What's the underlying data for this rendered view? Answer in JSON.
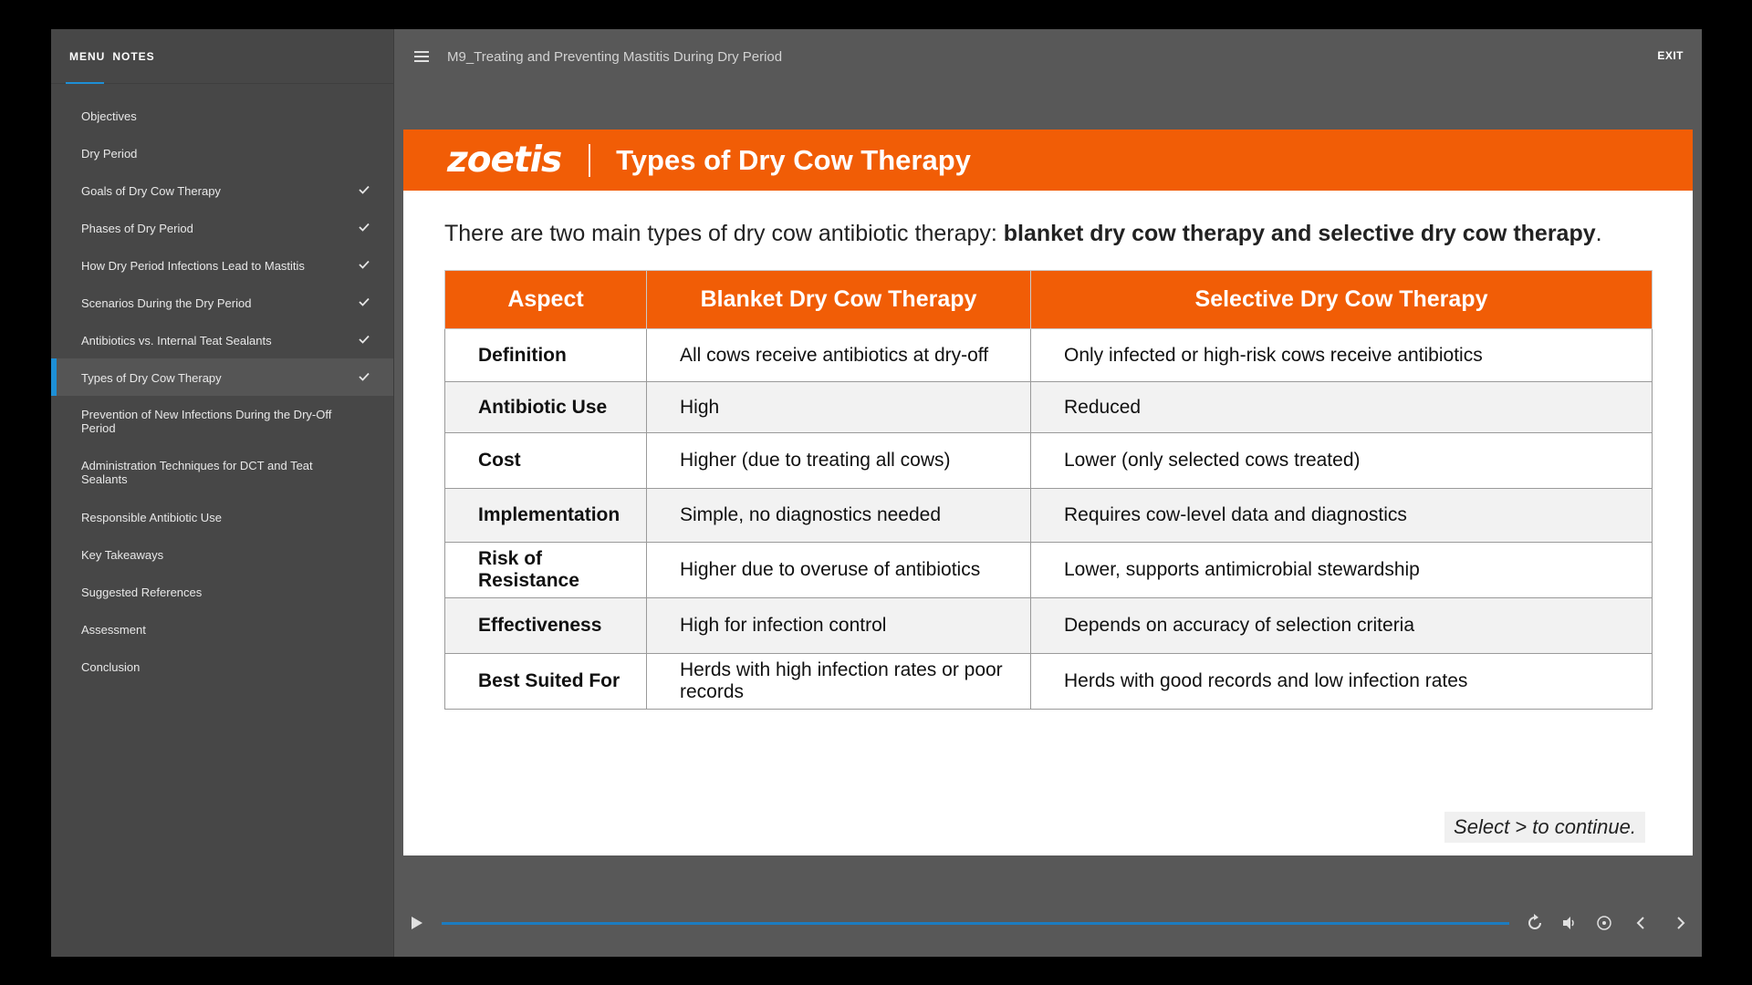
{
  "sidebar": {
    "tabs": [
      "MENU",
      "NOTES"
    ],
    "items": [
      {
        "label": "Objectives",
        "checked": false
      },
      {
        "label": "Dry Period",
        "checked": false
      },
      {
        "label": "Goals of Dry Cow Therapy",
        "checked": true
      },
      {
        "label": "Phases of Dry Period",
        "checked": true
      },
      {
        "label": "How Dry Period Infections Lead to Mastitis",
        "checked": true
      },
      {
        "label": "Scenarios During the Dry Period",
        "checked": true
      },
      {
        "label": "Antibiotics vs. Internal Teat Sealants",
        "checked": true
      },
      {
        "label": "Types of Dry Cow Therapy",
        "checked": true,
        "active": true
      },
      {
        "label": "Prevention of New Infections During the Dry-Off Period",
        "checked": false
      },
      {
        "label": "Administration Techniques for DCT and Teat Sealants",
        "checked": false
      },
      {
        "label": "Responsible Antibiotic Use",
        "checked": false
      },
      {
        "label": "Key Takeaways",
        "checked": false
      },
      {
        "label": "Suggested References",
        "checked": false
      },
      {
        "label": "Assessment",
        "checked": false
      },
      {
        "label": "Conclusion",
        "checked": false
      }
    ]
  },
  "topbar": {
    "course_title": "M9_Treating and Preventing Mastitis During Dry Period",
    "exit_label": "EXIT"
  },
  "slide": {
    "logo_text": "zoetis",
    "title": "Types of Dry Cow Therapy",
    "intro_plain": "There are two main types of dry cow antibiotic therapy: ",
    "intro_bold": "blanket dry cow therapy  and selective dry cow therapy",
    "intro_end": ".",
    "table": {
      "headers": [
        "Aspect",
        "Blanket Dry Cow Therapy",
        "Selective Dry Cow Therapy"
      ],
      "rows": [
        [
          "Definition",
          "All cows receive antibiotics at dry-off",
          "Only infected or high-risk cows receive antibiotics"
        ],
        [
          "Antibiotic Use",
          "High",
          "Reduced"
        ],
        [
          "Cost",
          "Higher (due to treating all cows)",
          "Lower (only selected cows treated)"
        ],
        [
          "Implementation",
          "Simple, no diagnostics needed",
          "Requires cow-level data and diagnostics"
        ],
        [
          "Risk of Resistance",
          "Higher due to overuse of antibiotics",
          "Lower, supports antimicrobial stewardship"
        ],
        [
          "Effectiveness",
          "High for infection control",
          "Depends on accuracy of selection criteria"
        ],
        [
          "Best Suited For",
          "Herds with high infection rates or poor records",
          "Herds with good records and low infection rates"
        ]
      ]
    },
    "continue_hint": "Select > to continue."
  },
  "colors": {
    "accent_orange": "#f15d06",
    "accent_blue": "#1d8fd6",
    "player_bg": "#585858",
    "sidebar_bg": "#474747"
  },
  "icons": {
    "hamburger": "hamburger-icon",
    "check": "check-icon",
    "play": "play-icon",
    "replay": "replay-icon",
    "volume": "volume-icon",
    "captions": "captions-icon",
    "prev": "chevron-left-icon",
    "next": "chevron-right-icon"
  },
  "playback": {
    "progress_fraction": 1.0
  }
}
